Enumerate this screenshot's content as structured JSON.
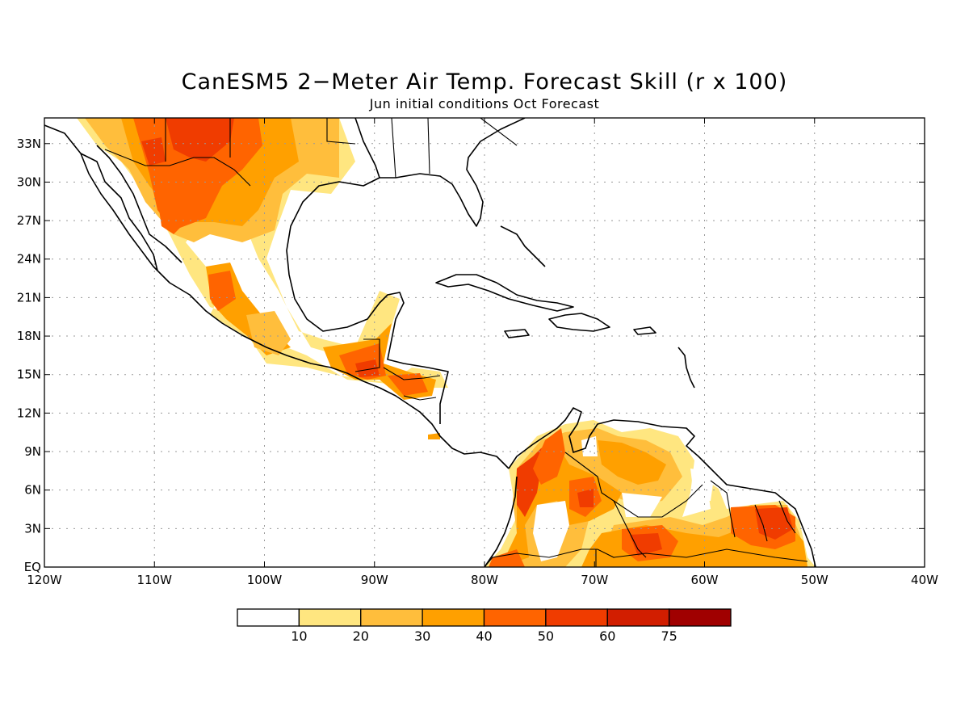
{
  "title": "CanESM5 2−Meter Air Temp. Forecast Skill (r x 100)",
  "subtitle": "Jun initial conditions  Oct Forecast",
  "lon_labels": [
    "120W",
    "110W",
    "100W",
    "90W",
    "80W",
    "70W",
    "60W",
    "50W",
    "40W"
  ],
  "lat_labels": [
    "33N",
    "30N",
    "27N",
    "24N",
    "21N",
    "18N",
    "15N",
    "12N",
    "9N",
    "6N",
    "3N",
    "EQ"
  ],
  "colorbar": {
    "levels": [
      "10",
      "20",
      "30",
      "40",
      "50",
      "60",
      "75"
    ],
    "colors": [
      "#ffffff",
      "#ffe680",
      "#ffbe3c",
      "#ffa000",
      "#ff6400",
      "#f03c00",
      "#d21e00",
      "#a00000"
    ]
  },
  "chart_data": {
    "type": "heatmap",
    "lon_range": [
      -120,
      -40
    ],
    "lat_range": [
      0,
      35
    ],
    "variable": "2-meter air temperature forecast skill (correlation x 100)",
    "color_levels": [
      10,
      20,
      30,
      40,
      50,
      60,
      75
    ],
    "regions": [
      {
        "lon": [
          -108,
          -100
        ],
        "lat": [
          27,
          35
        ],
        "level": 50
      },
      {
        "lon": [
          -104,
          -97
        ],
        "lat": [
          31,
          35
        ],
        "level": 60
      },
      {
        "lon": [
          -112,
          -103
        ],
        "lat": [
          25,
          31
        ],
        "level": 40
      },
      {
        "lon": [
          -103,
          -94
        ],
        "lat": [
          26,
          32
        ],
        "level": 30
      },
      {
        "lon": [
          -100,
          -92
        ],
        "lat": [
          30,
          35
        ],
        "level": 30
      },
      {
        "lon": [
          -106,
          -101
        ],
        "lat": [
          19,
          23
        ],
        "level": 40
      },
      {
        "lon": [
          -91,
          -88
        ],
        "lat": [
          15,
          17
        ],
        "level": 60
      },
      {
        "lon": [
          -88,
          -84
        ],
        "lat": [
          13,
          15
        ],
        "level": 40
      },
      {
        "lon": [
          -78,
          -74
        ],
        "lat": [
          4,
          11
        ],
        "level": 60
      },
      {
        "lon": [
          -72,
          -69
        ],
        "lat": [
          4,
          6
        ],
        "level": 60
      },
      {
        "lon": [
          -68,
          -64
        ],
        "lat": [
          1,
          3
        ],
        "level": 60
      },
      {
        "lon": [
          -70,
          -61
        ],
        "lat": [
          6,
          11
        ],
        "level": 30
      },
      {
        "lon": [
          -58,
          -51
        ],
        "lat": [
          1,
          5
        ],
        "level": 50
      },
      {
        "lon": [
          -70,
          -51
        ],
        "lat": [
          0,
          3
        ],
        "level": 40
      }
    ]
  }
}
